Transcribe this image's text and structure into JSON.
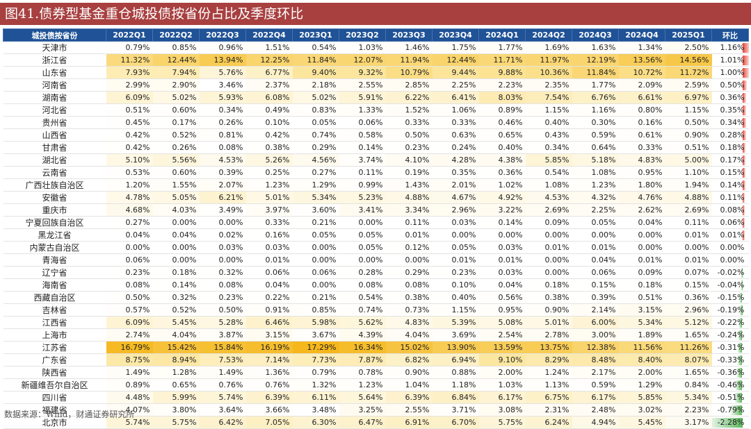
{
  "title": "图41.债券型基金重仓城投债按省份占比及季度环比",
  "source": "数据来源：Wind，财通证券研究所",
  "chart_data": {
    "type": "table",
    "columns": [
      "城投债按省份",
      "2022Q1",
      "2022Q2",
      "2022Q3",
      "2022Q4",
      "2023Q1",
      "2023Q2",
      "2023Q3",
      "2023Q4",
      "2024Q1",
      "2024Q2",
      "2024Q3",
      "2024Q4",
      "2025Q1",
      "环比"
    ],
    "rows": [
      {
        "province": "天津市",
        "values": [
          "0.79%",
          "0.85%",
          "0.96%",
          "1.51%",
          "0.54%",
          "1.03%",
          "1.46%",
          "1.75%",
          "1.77%",
          "1.69%",
          "1.63%",
          "1.34%",
          "2.50%"
        ],
        "qoq": "1.16%",
        "qoq_value": 1.16
      },
      {
        "province": "浙江省",
        "values": [
          "11.32%",
          "12.44%",
          "13.94%",
          "12.25%",
          "11.84%",
          "12.07%",
          "11.94%",
          "12.44%",
          "11.71%",
          "11.97%",
          "12.19%",
          "13.56%",
          "14.56%"
        ],
        "qoq": "1.01%",
        "qoq_value": 1.01
      },
      {
        "province": "山东省",
        "values": [
          "7.93%",
          "7.94%",
          "5.76%",
          "6.77%",
          "9.40%",
          "9.32%",
          "10.79%",
          "9.44%",
          "9.88%",
          "10.36%",
          "11.84%",
          "10.72%",
          "11.72%"
        ],
        "qoq": "1.00%",
        "qoq_value": 1.0
      },
      {
        "province": "河南省",
        "values": [
          "2.99%",
          "2.90%",
          "3.46%",
          "2.37%",
          "2.18%",
          "2.55%",
          "2.85%",
          "2.25%",
          "2.23%",
          "2.35%",
          "1.77%",
          "2.09%",
          "2.59%"
        ],
        "qoq": "0.50%",
        "qoq_value": 0.5
      },
      {
        "province": "湖南省",
        "values": [
          "6.09%",
          "5.02%",
          "5.93%",
          "6.08%",
          "5.02%",
          "5.91%",
          "6.22%",
          "6.41%",
          "8.03%",
          "7.54%",
          "6.76%",
          "6.61%",
          "6.97%"
        ],
        "qoq": "0.36%",
        "qoq_value": 0.36
      },
      {
        "province": "河北省",
        "values": [
          "0.51%",
          "0.60%",
          "0.34%",
          "0.49%",
          "0.83%",
          "1.33%",
          "1.52%",
          "1.06%",
          "0.89%",
          "1.15%",
          "1.16%",
          "0.80%",
          "1.15%"
        ],
        "qoq": "0.35%",
        "qoq_value": 0.35
      },
      {
        "province": "贵州省",
        "values": [
          "0.45%",
          "0.17%",
          "0.26%",
          "0.10%",
          "0.05%",
          "0.06%",
          "0.33%",
          "0.33%",
          "0.46%",
          "0.40%",
          "0.30%",
          "0.16%",
          "0.50%"
        ],
        "qoq": "0.34%",
        "qoq_value": 0.34
      },
      {
        "province": "山西省",
        "values": [
          "0.42%",
          "0.52%",
          "0.81%",
          "0.42%",
          "0.74%",
          "0.58%",
          "0.50%",
          "0.63%",
          "0.65%",
          "0.43%",
          "0.59%",
          "0.61%",
          "0.90%"
        ],
        "qoq": "0.28%",
        "qoq_value": 0.28
      },
      {
        "province": "甘肃省",
        "values": [
          "0.42%",
          "0.26%",
          "0.08%",
          "0.38%",
          "0.29%",
          "0.14%",
          "0.23%",
          "0.24%",
          "0.40%",
          "0.34%",
          "0.64%",
          "0.33%",
          "0.51%"
        ],
        "qoq": "0.18%",
        "qoq_value": 0.18
      },
      {
        "province": "湖北省",
        "values": [
          "5.10%",
          "5.56%",
          "4.53%",
          "5.26%",
          "4.56%",
          "3.74%",
          "4.10%",
          "4.28%",
          "4.38%",
          "5.85%",
          "5.18%",
          "4.83%",
          "5.00%"
        ],
        "qoq": "0.17%",
        "qoq_value": 0.17
      },
      {
        "province": "云南省",
        "values": [
          "0.53%",
          "0.60%",
          "0.39%",
          "0.25%",
          "0.27%",
          "0.11%",
          "0.19%",
          "0.35%",
          "0.36%",
          "0.54%",
          "1.08%",
          "0.95%",
          "1.10%"
        ],
        "qoq": "0.15%",
        "qoq_value": 0.15
      },
      {
        "province": "广西壮族自治区",
        "values": [
          "1.20%",
          "1.55%",
          "2.07%",
          "1.23%",
          "1.29%",
          "0.99%",
          "1.43%",
          "2.01%",
          "1.02%",
          "1.08%",
          "1.23%",
          "1.80%",
          "1.94%"
        ],
        "qoq": "0.14%",
        "qoq_value": 0.14
      },
      {
        "province": "安徽省",
        "values": [
          "4.78%",
          "5.05%",
          "6.21%",
          "5.01%",
          "5.34%",
          "5.23%",
          "4.88%",
          "4.67%",
          "4.92%",
          "4.53%",
          "4.32%",
          "4.76%",
          "4.88%"
        ],
        "qoq": "0.11%",
        "qoq_value": 0.11
      },
      {
        "province": "重庆市",
        "values": [
          "4.68%",
          "4.03%",
          "3.49%",
          "3.97%",
          "3.60%",
          "3.41%",
          "3.34%",
          "2.96%",
          "3.22%",
          "2.69%",
          "2.25%",
          "2.62%",
          "2.69%"
        ],
        "qoq": "0.08%",
        "qoq_value": 0.08
      },
      {
        "province": "宁夏回族自治区",
        "values": [
          "0.27%",
          "0.00%",
          "0.00%",
          "0.33%",
          "0.21%",
          "0.00%",
          "0.11%",
          "0.03%",
          "0.14%",
          "0.09%",
          "0.05%",
          "0.04%",
          "0.11%"
        ],
        "qoq": "0.06%",
        "qoq_value": 0.06
      },
      {
        "province": "黑龙江省",
        "values": [
          "0.04%",
          "0.04%",
          "0.02%",
          "0.16%",
          "0.05%",
          "0.05%",
          "0.01%",
          "0.00%",
          "0.00%",
          "0.00%",
          "0.00%",
          "0.00%",
          "0.01%"
        ],
        "qoq": "0.01%",
        "qoq_value": 0.01
      },
      {
        "province": "内蒙古自治区",
        "values": [
          "0.00%",
          "0.00%",
          "0.03%",
          "0.03%",
          "0.00%",
          "0.05%",
          "0.12%",
          "0.05%",
          "0.03%",
          "0.01%",
          "0.01%",
          "0.00%",
          "0.00%"
        ],
        "qoq": "0.00%",
        "qoq_value": 0.0
      },
      {
        "province": "青海省",
        "values": [
          "0.06%",
          "0.00%",
          "0.00%",
          "0.01%",
          "0.00%",
          "0.00%",
          "0.00%",
          "0.01%",
          "0.01%",
          "0.00%",
          "0.04%",
          "0.01%",
          "0.01%"
        ],
        "qoq": "0.00%",
        "qoq_value": 0.0
      },
      {
        "province": "辽宁省",
        "values": [
          "0.23%",
          "0.18%",
          "0.32%",
          "0.06%",
          "0.06%",
          "0.28%",
          "0.29%",
          "0.23%",
          "0.03%",
          "0.00%",
          "0.06%",
          "0.09%",
          "0.07%"
        ],
        "qoq": "-0.02%",
        "qoq_value": -0.02
      },
      {
        "province": "海南省",
        "values": [
          "0.08%",
          "0.14%",
          "0.08%",
          "0.04%",
          "0.00%",
          "0.08%",
          "0.08%",
          "0.10%",
          "0.04%",
          "0.18%",
          "0.15%",
          "0.18%",
          "0.15%"
        ],
        "qoq": "-0.04%",
        "qoq_value": -0.04
      },
      {
        "province": "西藏自治区",
        "values": [
          "0.50%",
          "0.32%",
          "0.23%",
          "0.22%",
          "0.21%",
          "0.54%",
          "0.38%",
          "0.40%",
          "0.56%",
          "0.38%",
          "0.39%",
          "0.51%",
          "0.36%"
        ],
        "qoq": "-0.15%",
        "qoq_value": -0.15
      },
      {
        "province": "吉林省",
        "values": [
          "0.57%",
          "0.52%",
          "0.50%",
          "0.91%",
          "0.85%",
          "0.74%",
          "0.73%",
          "1.15%",
          "0.95%",
          "0.90%",
          "2.14%",
          "3.15%",
          "2.96%"
        ],
        "qoq": "-0.19%",
        "qoq_value": -0.19
      },
      {
        "province": "江西省",
        "values": [
          "6.09%",
          "5.45%",
          "5.28%",
          "6.46%",
          "5.98%",
          "5.62%",
          "4.83%",
          "5.39%",
          "5.08%",
          "5.01%",
          "6.00%",
          "5.34%",
          "5.12%"
        ],
        "qoq": "-0.22%",
        "qoq_value": -0.22
      },
      {
        "province": "上海市",
        "values": [
          "2.74%",
          "4.04%",
          "3.87%",
          "3.15%",
          "3.67%",
          "4.39%",
          "4.04%",
          "3.69%",
          "2.54%",
          "2.78%",
          "3.00%",
          "1.89%",
          "1.65%"
        ],
        "qoq": "-0.24%",
        "qoq_value": -0.24
      },
      {
        "province": "江苏省",
        "values": [
          "16.79%",
          "15.42%",
          "15.84%",
          "16.19%",
          "17.29%",
          "16.34%",
          "15.02%",
          "13.90%",
          "13.59%",
          "13.75%",
          "12.38%",
          "11.56%",
          "11.26%"
        ],
        "qoq": "-0.31%",
        "qoq_value": -0.31
      },
      {
        "province": "广东省",
        "values": [
          "8.75%",
          "8.94%",
          "7.53%",
          "7.14%",
          "7.73%",
          "7.87%",
          "6.82%",
          "6.94%",
          "9.10%",
          "8.29%",
          "8.48%",
          "8.40%",
          "8.07%"
        ],
        "qoq": "-0.33%",
        "qoq_value": -0.33
      },
      {
        "province": "陕西省",
        "values": [
          "1.49%",
          "1.28%",
          "1.49%",
          "1.36%",
          "0.79%",
          "0.78%",
          "0.90%",
          "0.88%",
          "2.00%",
          "1.24%",
          "2.17%",
          "2.00%",
          "1.65%"
        ],
        "qoq": "-0.36%",
        "qoq_value": -0.36
      },
      {
        "province": "新疆维吾尔自治区",
        "values": [
          "0.89%",
          "0.65%",
          "0.76%",
          "0.76%",
          "1.32%",
          "1.23%",
          "1.04%",
          "1.18%",
          "1.03%",
          "1.13%",
          "0.59%",
          "1.29%",
          "0.84%"
        ],
        "qoq": "-0.46%",
        "qoq_value": -0.46
      },
      {
        "province": "四川省",
        "values": [
          "4.48%",
          "5.99%",
          "5.74%",
          "6.39%",
          "6.11%",
          "5.64%",
          "6.39%",
          "6.84%",
          "6.17%",
          "6.75%",
          "6.17%",
          "5.85%",
          "5.34%"
        ],
        "qoq": "-0.51%",
        "qoq_value": -0.51
      },
      {
        "province": "福建省",
        "values": [
          "4.07%",
          "3.80%",
          "3.64%",
          "3.66%",
          "3.48%",
          "3.25%",
          "2.55%",
          "3.71%",
          "3.08%",
          "2.31%",
          "2.48%",
          "3.02%",
          "2.23%"
        ],
        "qoq": "-0.79%",
        "qoq_value": -0.79
      },
      {
        "province": "北京市",
        "values": [
          "5.74%",
          "5.75%",
          "6.42%",
          "7.05%",
          "6.30%",
          "6.47%",
          "6.91%",
          "6.70%",
          "5.75%",
          "6.24%",
          "4.94%",
          "5.45%",
          "3.17%"
        ],
        "qoq": "-2.28%",
        "qoq_value": -2.28
      }
    ],
    "heat_colors": {
      "low": "#ffffff",
      "mid": "#fce59a",
      "high": "#f5b71c"
    },
    "qoq_colors": {
      "positive": "#e8443a",
      "negative": "#5cb85c"
    }
  }
}
